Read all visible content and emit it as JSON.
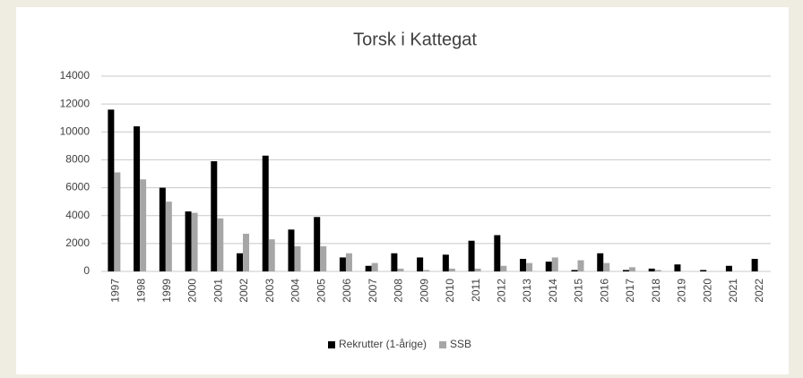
{
  "chart_data": {
    "type": "bar",
    "title": "Torsk i Kattegat",
    "categories": [
      "1997",
      "1998",
      "1999",
      "2000",
      "2001",
      "2002",
      "2003",
      "2004",
      "2005",
      "2006",
      "2007",
      "2008",
      "2009",
      "2010",
      "2011",
      "2012",
      "2013",
      "2014",
      "2015",
      "2016",
      "2017",
      "2018",
      "2019",
      "2020",
      "2021",
      "2022"
    ],
    "series": [
      {
        "name": "Rekrutter (1-årige)",
        "color": "#000000",
        "values": [
          11600,
          10400,
          6000,
          4300,
          7900,
          1300,
          8300,
          3000,
          3900,
          1000,
          400,
          1300,
          1000,
          1200,
          2200,
          2600,
          900,
          700,
          100,
          1300,
          100,
          200,
          500,
          100,
          400,
          900
        ]
      },
      {
        "name": "SSB",
        "color": "#a6a6a6",
        "values": [
          7100,
          6600,
          5000,
          4200,
          3800,
          2700,
          2300,
          1800,
          1800,
          1300,
          600,
          200,
          100,
          200,
          200,
          400,
          600,
          1000,
          800,
          600,
          300,
          100,
          0,
          0,
          0,
          0
        ]
      }
    ],
    "ylim": [
      0,
      14000
    ],
    "yticks": [
      0,
      2000,
      4000,
      6000,
      8000,
      10000,
      12000,
      14000
    ],
    "grid": true,
    "legend": "bottom"
  }
}
